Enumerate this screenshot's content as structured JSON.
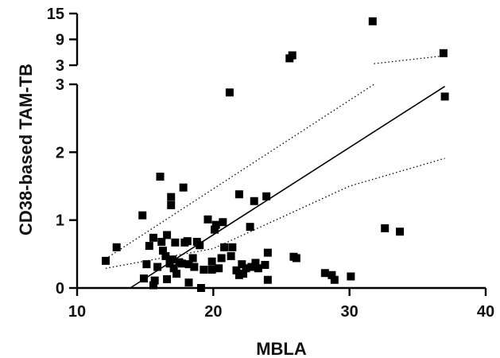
{
  "chart_data": {
    "type": "scatter",
    "xlabel": "MBLA",
    "ylabel": "CD38-based TAM-TB",
    "xlim": [
      10,
      40
    ],
    "x_ticks": [
      10,
      20,
      30,
      40
    ],
    "ylim_lower": [
      0,
      3
    ],
    "ylim_upper": [
      3,
      15
    ],
    "y_ticks_lower": [
      0,
      1,
      2,
      3
    ],
    "y_ticks_upper": [
      3,
      9,
      15
    ],
    "broken_y_axis": true,
    "grid": false,
    "points": [
      {
        "x": 12.1,
        "y": 0.4
      },
      {
        "x": 12.9,
        "y": 0.6
      },
      {
        "x": 14.8,
        "y": 1.07
      },
      {
        "x": 14.9,
        "y": 0.14
      },
      {
        "x": 15.1,
        "y": 0.35
      },
      {
        "x": 15.3,
        "y": 0.62
      },
      {
        "x": 15.6,
        "y": 0.74
      },
      {
        "x": 15.6,
        "y": 0.04
      },
      {
        "x": 15.7,
        "y": 0.11
      },
      {
        "x": 15.9,
        "y": 0.31
      },
      {
        "x": 16.1,
        "y": 1.64
      },
      {
        "x": 16.2,
        "y": 0.68
      },
      {
        "x": 16.3,
        "y": 0.55
      },
      {
        "x": 16.5,
        "y": 0.47
      },
      {
        "x": 16.6,
        "y": 0.78
      },
      {
        "x": 16.6,
        "y": 0.13
      },
      {
        "x": 16.8,
        "y": 0.36
      },
      {
        "x": 16.9,
        "y": 1.34
      },
      {
        "x": 16.9,
        "y": 1.22
      },
      {
        "x": 17.0,
        "y": 0.42
      },
      {
        "x": 17.1,
        "y": 0.29
      },
      {
        "x": 17.2,
        "y": 0.67
      },
      {
        "x": 17.3,
        "y": 0.21
      },
      {
        "x": 17.5,
        "y": 0.38
      },
      {
        "x": 17.7,
        "y": 0.36
      },
      {
        "x": 17.8,
        "y": 1.48
      },
      {
        "x": 17.9,
        "y": 0.67
      },
      {
        "x": 18.1,
        "y": 0.69
      },
      {
        "x": 18.2,
        "y": 0.35
      },
      {
        "x": 18.2,
        "y": 0.08
      },
      {
        "x": 18.5,
        "y": 0.44
      },
      {
        "x": 18.6,
        "y": 0.31
      },
      {
        "x": 18.8,
        "y": 0.68
      },
      {
        "x": 19.0,
        "y": 0.63
      },
      {
        "x": 19.1,
        "y": 0.0
      },
      {
        "x": 19.3,
        "y": 0.27
      },
      {
        "x": 19.6,
        "y": 1.01
      },
      {
        "x": 19.9,
        "y": 0.39
      },
      {
        "x": 19.9,
        "y": 0.27
      },
      {
        "x": 20.1,
        "y": 0.86
      },
      {
        "x": 20.2,
        "y": 0.93
      },
      {
        "x": 20.4,
        "y": 0.29
      },
      {
        "x": 20.6,
        "y": 0.44
      },
      {
        "x": 20.7,
        "y": 0.97
      },
      {
        "x": 20.8,
        "y": 0.6
      },
      {
        "x": 21.2,
        "y": 2.88
      },
      {
        "x": 21.3,
        "y": 0.47
      },
      {
        "x": 21.4,
        "y": 0.6
      },
      {
        "x": 21.7,
        "y": 0.26
      },
      {
        "x": 21.9,
        "y": 1.38
      },
      {
        "x": 21.9,
        "y": 0.19
      },
      {
        "x": 22.1,
        "y": 0.35
      },
      {
        "x": 22.2,
        "y": 0.21
      },
      {
        "x": 22.4,
        "y": 0.29
      },
      {
        "x": 22.7,
        "y": 0.9
      },
      {
        "x": 22.8,
        "y": 0.31
      },
      {
        "x": 23.0,
        "y": 1.28
      },
      {
        "x": 23.1,
        "y": 0.37
      },
      {
        "x": 23.3,
        "y": 0.29
      },
      {
        "x": 23.8,
        "y": 0.34
      },
      {
        "x": 23.9,
        "y": 1.35
      },
      {
        "x": 24.0,
        "y": 0.52
      },
      {
        "x": 24.0,
        "y": 0.12
      },
      {
        "x": 25.6,
        "y": 4.6
      },
      {
        "x": 25.8,
        "y": 5.3
      },
      {
        "x": 25.9,
        "y": 0.46
      },
      {
        "x": 26.1,
        "y": 0.44
      },
      {
        "x": 28.2,
        "y": 0.22
      },
      {
        "x": 28.7,
        "y": 0.19
      },
      {
        "x": 28.9,
        "y": 0.12
      },
      {
        "x": 30.1,
        "y": 0.17
      },
      {
        "x": 31.7,
        "y": 13.2
      },
      {
        "x": 32.6,
        "y": 0.88
      },
      {
        "x": 33.7,
        "y": 0.83
      },
      {
        "x": 36.9,
        "y": 5.8
      },
      {
        "x": 37.0,
        "y": 2.82
      }
    ],
    "fit_line": {
      "x": [
        13.9,
        37.0
      ],
      "y": [
        0.0,
        2.97
      ]
    },
    "ci_upper": [
      {
        "x": 12.1,
        "y": 0.43
      },
      {
        "x": 31.8,
        "y": 3.0
      },
      {
        "x": 31.8,
        "y": 3.0
      },
      {
        "x": 37.0,
        "y": 5.2
      }
    ],
    "ci_lower": [
      {
        "x": 12.1,
        "y": 0.29
      },
      {
        "x": 20.0,
        "y": 0.58
      },
      {
        "x": 30.0,
        "y": 1.5
      },
      {
        "x": 37.0,
        "y": 1.91
      }
    ]
  }
}
